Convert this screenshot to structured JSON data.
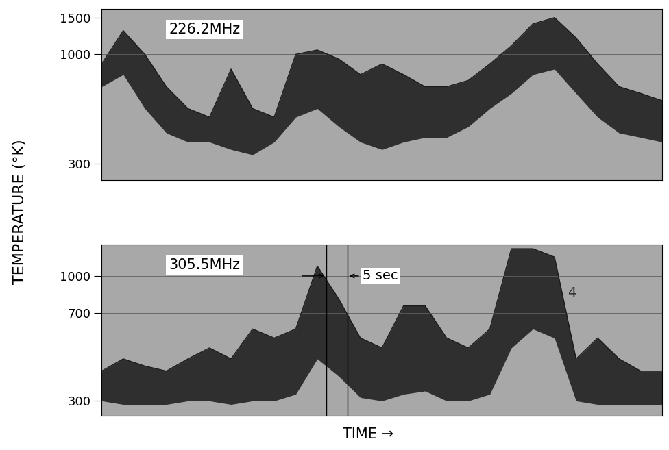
{
  "chart_data": [
    {
      "type": "line",
      "title": "226.2MHz",
      "log": "y",
      "grid": true,
      "tick_labels": "y",
      "color": "#1a1a1a",
      "x": [
        0,
        5,
        10,
        15,
        20,
        25,
        30,
        35,
        40,
        45,
        50,
        55,
        60,
        65,
        70,
        75,
        80,
        85,
        90,
        95,
        100,
        105,
        110,
        115,
        120,
        125,
        130
      ],
      "values": [
        900,
        1300,
        1000,
        700,
        550,
        500,
        850,
        550,
        500,
        1000,
        1050,
        950,
        800,
        900,
        800,
        700,
        700,
        750,
        900,
        1100,
        1400,
        1500,
        1200,
        900,
        700,
        650,
        600
      ],
      "baseline": [
        700,
        800,
        550,
        420,
        380,
        380,
        350,
        330,
        380,
        500,
        550,
        450,
        380,
        350,
        380,
        400,
        400,
        450,
        550,
        650,
        800,
        850,
        650,
        500,
        420,
        400,
        380
      ],
      "xlim": [
        0,
        130
      ],
      "ylim": [
        250,
        1650
      ],
      "yticks": [
        300,
        1000,
        1500
      ]
    },
    {
      "type": "line",
      "title": "305.5MHz",
      "log": "y",
      "grid": true,
      "tick_labels": "y",
      "color": "#1a1a1a",
      "x": [
        0,
        5,
        10,
        15,
        20,
        25,
        30,
        35,
        40,
        45,
        50,
        55,
        60,
        65,
        70,
        75,
        80,
        85,
        90,
        95,
        100,
        105,
        110,
        115,
        120,
        125,
        130
      ],
      "values": [
        400,
        450,
        420,
        400,
        450,
        500,
        450,
        600,
        550,
        600,
        1100,
        800,
        550,
        500,
        750,
        750,
        550,
        500,
        600,
        1300,
        1300,
        1200,
        450,
        550,
        450,
        400,
        400
      ],
      "baseline": [
        300,
        290,
        290,
        290,
        300,
        300,
        290,
        300,
        300,
        320,
        450,
        380,
        310,
        300,
        320,
        330,
        300,
        300,
        320,
        500,
        600,
        550,
        300,
        290,
        290,
        290,
        290
      ],
      "xlim": [
        0,
        130
      ],
      "ylim": [
        260,
        1350
      ],
      "yticks": [
        300,
        700,
        1000
      ],
      "annotations": [
        {
          "text": "5 sec",
          "x": 52,
          "width": 5,
          "y": 1000
        },
        {
          "text": "4",
          "x": 109,
          "width": 0,
          "y": 850
        }
      ]
    }
  ],
  "figure": {
    "ylabel": "TEMPERATURE (°K)",
    "xlabel": "TIME →"
  }
}
